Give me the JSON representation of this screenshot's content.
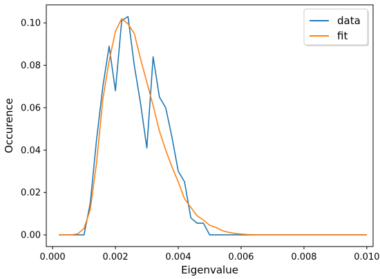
{
  "chart_data": {
    "type": "line",
    "xlabel": "Eigenvalue",
    "ylabel": "Occurence",
    "xlim": [
      -0.0002,
      0.0102
    ],
    "ylim": [
      -0.0055,
      0.1085
    ],
    "x_ticks": [
      0.0,
      0.002,
      0.004,
      0.006,
      0.008,
      0.01
    ],
    "x_tick_labels": [
      "0.000",
      "0.002",
      "0.004",
      "0.006",
      "0.008",
      "0.010"
    ],
    "y_ticks": [
      0.0,
      0.02,
      0.04,
      0.06,
      0.08,
      0.1
    ],
    "y_tick_labels": [
      "0.00",
      "0.02",
      "0.04",
      "0.06",
      "0.08",
      "0.10"
    ],
    "grid": false,
    "legend_position": "top-right",
    "series": [
      {
        "name": "data",
        "color": "#1f77b4",
        "x": [
          0.0002,
          0.0004,
          0.0006,
          0.0008,
          0.001,
          0.0012,
          0.0014,
          0.0016,
          0.0018,
          0.002,
          0.0022,
          0.0024,
          0.0026,
          0.0028,
          0.003,
          0.0032,
          0.0034,
          0.0036,
          0.0038,
          0.004,
          0.0042,
          0.0044,
          0.0046,
          0.0048,
          0.005,
          0.0052,
          0.0054,
          0.0056,
          0.0058,
          0.006,
          0.0062,
          0.0064,
          0.0066,
          0.0068,
          0.007,
          0.0072,
          0.0074,
          0.0076,
          0.0078,
          0.008,
          0.0082,
          0.0084,
          0.0086,
          0.0088,
          0.009,
          0.0092,
          0.0094,
          0.0096,
          0.0098,
          0.01
        ],
        "values": [
          0.0,
          0.0,
          0.0,
          0.0,
          0.0,
          0.015,
          0.045,
          0.07,
          0.089,
          0.068,
          0.101,
          0.103,
          0.08,
          0.062,
          0.041,
          0.084,
          0.065,
          0.06,
          0.046,
          0.03,
          0.025,
          0.008,
          0.0055,
          0.0055,
          0.0,
          0.0,
          0.0,
          0.0,
          0.0,
          0.0,
          0.0,
          0.0,
          0.0,
          0.0,
          0.0,
          0.0,
          0.0,
          0.0,
          0.0,
          0.0,
          0.0,
          0.0,
          0.0,
          0.0,
          0.0,
          0.0,
          0.0,
          0.0,
          0.0,
          0.0
        ]
      },
      {
        "name": "fit",
        "color": "#ff7f0e",
        "x": [
          0.0002,
          0.0004,
          0.0006,
          0.0008,
          0.001,
          0.0012,
          0.0014,
          0.0016,
          0.0018,
          0.002,
          0.0022,
          0.0024,
          0.0026,
          0.0028,
          0.003,
          0.0032,
          0.0034,
          0.0036,
          0.0038,
          0.004,
          0.0042,
          0.0044,
          0.0046,
          0.0048,
          0.005,
          0.0052,
          0.0054,
          0.0056,
          0.0058,
          0.006,
          0.0062,
          0.0064,
          0.0066,
          0.0068,
          0.007,
          0.0072,
          0.0074,
          0.0076,
          0.0078,
          0.008,
          0.0082,
          0.0084,
          0.0086,
          0.0088,
          0.009,
          0.0092,
          0.0094,
          0.0096,
          0.0098,
          0.01
        ],
        "values": [
          0.0,
          0.0,
          0.0,
          0.0005,
          0.003,
          0.012,
          0.034,
          0.064,
          0.082,
          0.096,
          0.102,
          0.0995,
          0.095,
          0.083,
          0.072,
          0.061,
          0.049,
          0.04,
          0.032,
          0.025,
          0.017,
          0.013,
          0.009,
          0.007,
          0.0045,
          0.0035,
          0.002,
          0.0012,
          0.0007,
          0.0004,
          0.0002,
          0.0001,
          0.0,
          0.0,
          0.0,
          0.0,
          0.0,
          0.0,
          0.0,
          0.0,
          0.0,
          0.0,
          0.0,
          0.0,
          0.0,
          0.0,
          0.0,
          0.0,
          0.0,
          0.0
        ]
      }
    ]
  }
}
